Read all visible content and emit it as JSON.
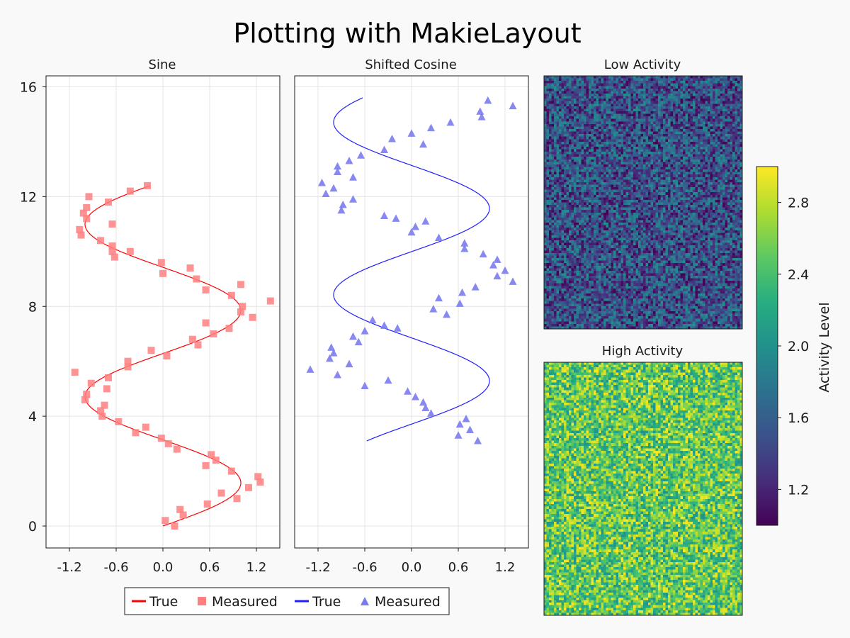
{
  "title": "Plotting with MakieLayout",
  "colors": {
    "background": "#f9f9f9",
    "sine_line": "#ff0000",
    "sine_marker": "#ff8080",
    "cosine_line": "#1f1fff",
    "cosine_marker": "#7b7bf0",
    "grid": "#e4e4e4",
    "axis_frame": "#1a1a1a"
  },
  "colormap": "viridis",
  "legend": {
    "items": [
      {
        "label": "True",
        "kind": "line",
        "color": "#ff0000"
      },
      {
        "label": "Measured",
        "kind": "square",
        "color": "#ff8080"
      },
      {
        "label": "True",
        "kind": "line",
        "color": "#1f1fff"
      },
      {
        "label": "Measured",
        "kind": "triangle",
        "color": "#7b7bf0"
      }
    ]
  },
  "colorbar": {
    "label": "Activity Level",
    "range": [
      1.0,
      3.0
    ],
    "ticks": [
      "1.2",
      "1.6",
      "2.0",
      "2.4",
      "2.8"
    ]
  },
  "chart_data": [
    {
      "type": "line",
      "title": "Sine",
      "xlim": [
        -1.5,
        1.5
      ],
      "ylim": [
        -0.8,
        16.4
      ],
      "xticks": [
        "-1.2",
        "-0.6",
        "0.0",
        "0.6",
        "1.2"
      ],
      "yticks": [
        "0",
        "4",
        "8",
        "12",
        "16"
      ],
      "grid": true,
      "series": [
        {
          "name": "True",
          "kind": "curve",
          "function": "sin",
          "ymax": 12.4
        },
        {
          "name": "Measured",
          "kind": "scatter",
          "points": [
            [
              0.03,
              0.2
            ],
            [
              0.15,
              0.0
            ],
            [
              0.22,
              0.6
            ],
            [
              0.26,
              0.4
            ],
            [
              0.57,
              0.8
            ],
            [
              0.75,
              1.2
            ],
            [
              0.95,
              1.0
            ],
            [
              1.1,
              1.4
            ],
            [
              1.22,
              1.8
            ],
            [
              1.25,
              1.6
            ],
            [
              0.88,
              2.0
            ],
            [
              0.55,
              2.2
            ],
            [
              0.62,
              2.6
            ],
            [
              0.68,
              2.4
            ],
            [
              0.18,
              2.8
            ],
            [
              0.07,
              3.0
            ],
            [
              -0.02,
              3.2
            ],
            [
              -0.22,
              3.6
            ],
            [
              -0.35,
              3.4
            ],
            [
              -0.57,
              3.8
            ],
            [
              -0.78,
              4.0
            ],
            [
              -0.8,
              4.2
            ],
            [
              -0.75,
              4.4
            ],
            [
              -1.0,
              4.6
            ],
            [
              -0.98,
              4.8
            ],
            [
              -0.72,
              5.0
            ],
            [
              -0.92,
              5.2
            ],
            [
              -0.7,
              5.4
            ],
            [
              -1.13,
              5.6
            ],
            [
              -0.45,
              5.8
            ],
            [
              -0.45,
              6.0
            ],
            [
              0.05,
              6.2
            ],
            [
              -0.15,
              6.4
            ],
            [
              0.45,
              6.6
            ],
            [
              0.38,
              6.8
            ],
            [
              0.65,
              7.0
            ],
            [
              0.85,
              7.2
            ],
            [
              0.55,
              7.4
            ],
            [
              1.15,
              7.6
            ],
            [
              1.0,
              7.8
            ],
            [
              1.02,
              8.0
            ],
            [
              1.38,
              8.2
            ],
            [
              0.88,
              8.4
            ],
            [
              0.55,
              8.6
            ],
            [
              1.0,
              8.8
            ],
            [
              0.43,
              9.0
            ],
            [
              0.35,
              9.4
            ],
            [
              0.0,
              9.2
            ],
            [
              -0.02,
              9.6
            ],
            [
              -0.62,
              9.8
            ],
            [
              -0.65,
              10.0
            ],
            [
              -0.42,
              10.0
            ],
            [
              -0.65,
              10.2
            ],
            [
              -0.8,
              10.4
            ],
            [
              -1.05,
              10.6
            ],
            [
              -1.07,
              10.8
            ],
            [
              -0.98,
              11.2
            ],
            [
              -1.02,
              11.4
            ],
            [
              -0.65,
              11.0
            ],
            [
              -0.98,
              11.6
            ],
            [
              -0.7,
              11.8
            ],
            [
              -0.95,
              12.0
            ],
            [
              -0.42,
              12.2
            ],
            [
              -0.2,
              12.4
            ]
          ]
        }
      ]
    },
    {
      "type": "line",
      "title": "Shifted Cosine",
      "xlim": [
        -1.5,
        1.5
      ],
      "ylim": [
        -0.8,
        16.4
      ],
      "xticks": [
        "-1.2",
        "-0.6",
        "0.0",
        "0.6",
        "1.2"
      ],
      "grid": true,
      "series": [
        {
          "name": "True",
          "kind": "curve",
          "function": "cos_shifted",
          "ymin": 3.1
        },
        {
          "name": "Measured",
          "kind": "scatter",
          "points": [
            [
              0.85,
              3.1
            ],
            [
              0.6,
              3.3
            ],
            [
              0.75,
              3.5
            ],
            [
              0.62,
              3.7
            ],
            [
              0.7,
              3.9
            ],
            [
              0.25,
              4.1
            ],
            [
              0.18,
              4.3
            ],
            [
              0.15,
              4.5
            ],
            [
              0.05,
              4.7
            ],
            [
              -0.05,
              4.9
            ],
            [
              -0.6,
              5.1
            ],
            [
              -0.3,
              5.3
            ],
            [
              -0.95,
              5.5
            ],
            [
              -1.3,
              5.7
            ],
            [
              -0.8,
              5.9
            ],
            [
              -1.05,
              6.1
            ],
            [
              -1.0,
              6.3
            ],
            [
              -1.03,
              6.5
            ],
            [
              -0.68,
              6.7
            ],
            [
              -0.75,
              6.9
            ],
            [
              -0.6,
              7.1
            ],
            [
              -0.18,
              7.2
            ],
            [
              -0.35,
              7.3
            ],
            [
              -0.5,
              7.5
            ],
            [
              0.45,
              7.7
            ],
            [
              0.28,
              7.9
            ],
            [
              0.62,
              8.1
            ],
            [
              0.35,
              8.3
            ],
            [
              0.65,
              8.5
            ],
            [
              0.82,
              8.7
            ],
            [
              1.3,
              8.9
            ],
            [
              1.1,
              9.1
            ],
            [
              1.2,
              9.3
            ],
            [
              1.05,
              9.5
            ],
            [
              1.1,
              9.7
            ],
            [
              0.92,
              9.9
            ],
            [
              0.68,
              10.1
            ],
            [
              0.68,
              10.3
            ],
            [
              0.35,
              10.5
            ],
            [
              0.0,
              10.7
            ],
            [
              0.05,
              10.9
            ],
            [
              0.18,
              11.1
            ],
            [
              -0.2,
              11.2
            ],
            [
              -0.35,
              11.3
            ],
            [
              -0.9,
              11.5
            ],
            [
              -0.88,
              11.7
            ],
            [
              -0.75,
              11.9
            ],
            [
              -1.1,
              12.1
            ],
            [
              -1.0,
              12.3
            ],
            [
              -1.15,
              12.5
            ],
            [
              -0.75,
              12.7
            ],
            [
              -0.95,
              12.9
            ],
            [
              -0.95,
              13.1
            ],
            [
              -0.8,
              13.3
            ],
            [
              -0.65,
              13.5
            ],
            [
              -0.35,
              13.7
            ],
            [
              -0.25,
              14.1
            ],
            [
              0.15,
              13.9
            ],
            [
              0.0,
              14.3
            ],
            [
              0.25,
              14.5
            ],
            [
              0.5,
              14.7
            ],
            [
              0.9,
              14.9
            ],
            [
              0.88,
              15.1
            ],
            [
              1.3,
              15.3
            ],
            [
              0.98,
              15.5
            ]
          ]
        }
      ]
    },
    {
      "type": "heatmap",
      "title": "Low Activity",
      "nx": 80,
      "ny": 100,
      "value_range": [
        1.0,
        2.0
      ]
    },
    {
      "type": "heatmap",
      "title": "High Activity",
      "nx": 80,
      "ny": 100,
      "value_range": [
        2.0,
        3.0
      ]
    }
  ]
}
